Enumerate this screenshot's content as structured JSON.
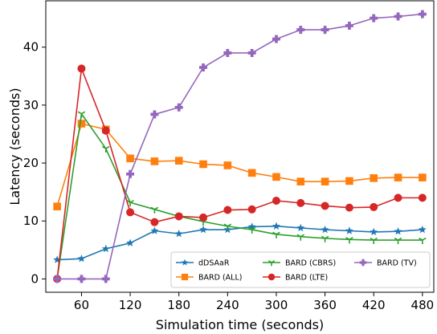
{
  "chart_data": {
    "type": "line",
    "title": "",
    "xlabel": "Simulation time (seconds)",
    "ylabel": "Latency (seconds)",
    "xlim": [
      16,
      494
    ],
    "ylim": [
      -2.3,
      48
    ],
    "x_ticks": [
      60,
      120,
      180,
      240,
      300,
      360,
      420,
      480
    ],
    "y_ticks": [
      0,
      10,
      20,
      30,
      40
    ],
    "x": [
      30,
      60,
      90,
      120,
      150,
      180,
      210,
      240,
      270,
      300,
      330,
      360,
      390,
      420,
      450,
      480
    ],
    "grid": false,
    "legend_position": "lower-right",
    "series": [
      {
        "name": "dDSAaR",
        "color": "#1f77b4",
        "marker": "star",
        "values": [
          3.3,
          3.5,
          5.2,
          6.2,
          8.3,
          7.8,
          8.5,
          8.5,
          9.0,
          9.1,
          8.8,
          8.5,
          8.3,
          8.1,
          8.2,
          8.5
        ]
      },
      {
        "name": "BARD (ALL)",
        "color": "#ff7f0e",
        "marker": "square",
        "values": [
          12.5,
          26.8,
          25.8,
          20.8,
          20.3,
          20.4,
          19.8,
          19.6,
          18.3,
          17.6,
          16.8,
          16.8,
          16.9,
          17.4,
          17.5,
          17.5
        ]
      },
      {
        "name": "BARD (CBRS)",
        "color": "#2ca02c",
        "marker": "tri_down",
        "values": [
          0.0,
          28.5,
          22.5,
          13.2,
          12.0,
          10.8,
          9.9,
          9.1,
          8.5,
          7.7,
          7.3,
          7.0,
          6.8,
          6.7,
          6.7,
          6.7
        ]
      },
      {
        "name": "BARD (LTE)",
        "color": "#d62728",
        "marker": "circle",
        "values": [
          0.0,
          36.3,
          25.6,
          11.5,
          9.8,
          10.8,
          10.6,
          11.9,
          12.0,
          13.5,
          13.1,
          12.6,
          12.3,
          12.4,
          14.0,
          14.0
        ]
      },
      {
        "name": "BARD (TV)",
        "color": "#9467bd",
        "marker": "plus",
        "values": [
          0.0,
          0.0,
          0.0,
          18.1,
          28.4,
          29.6,
          36.5,
          39.0,
          39.0,
          41.4,
          43.0,
          43.0,
          43.7,
          45.0,
          45.3,
          45.7
        ]
      }
    ],
    "legend_columns": [
      [
        "dDSAaR",
        "BARD (ALL)"
      ],
      [
        "BARD (CBRS)",
        "BARD (LTE)"
      ],
      [
        "BARD (TV)"
      ]
    ]
  }
}
